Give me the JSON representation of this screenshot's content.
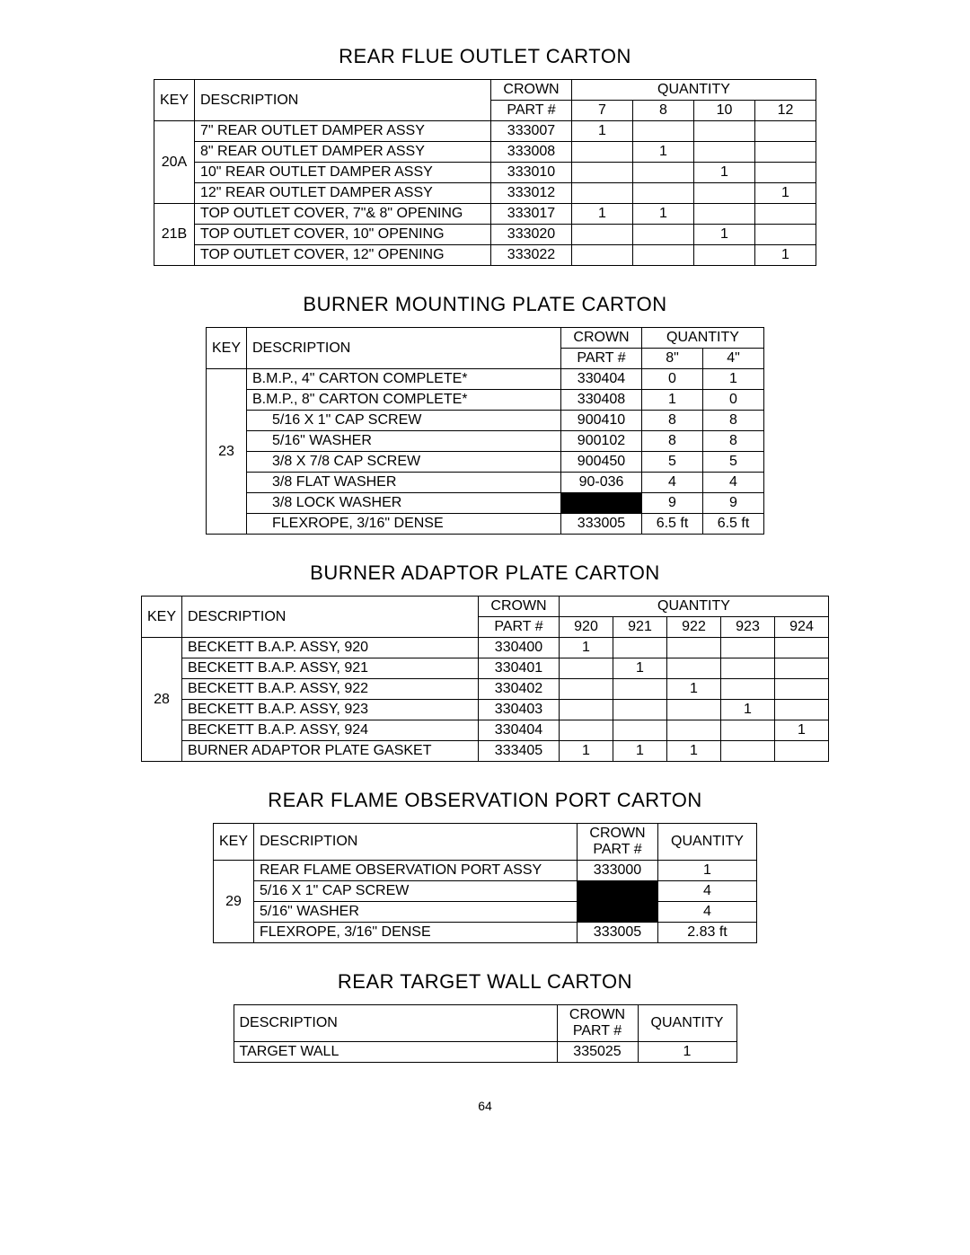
{
  "page_number": "64",
  "sections": [
    {
      "title": "REAR FLUE OUTLET CARTON",
      "has_key": true,
      "desc_width": 330,
      "qty_header": "QUANTITY",
      "qty_cols": [
        "7",
        "8",
        "10",
        "12"
      ],
      "qty_col_width": 68,
      "groups": [
        {
          "key": "20A",
          "rows": [
            {
              "desc": "7\" REAR OUTLET DAMPER ASSY",
              "part": "333007",
              "q": [
                "1",
                "",
                "",
                ""
              ]
            },
            {
              "desc": "8\" REAR OUTLET DAMPER ASSY",
              "part": "333008",
              "q": [
                "",
                "1",
                "",
                ""
              ]
            },
            {
              "desc": "10\" REAR OUTLET DAMPER ASSY",
              "part": "333010",
              "q": [
                "",
                "",
                "1",
                ""
              ]
            },
            {
              "desc": "12\" REAR OUTLET DAMPER ASSY",
              "part": "333012",
              "q": [
                "",
                "",
                "",
                "1"
              ]
            }
          ]
        },
        {
          "key": "21B",
          "rows": [
            {
              "desc": "TOP OUTLET COVER,  7\"& 8\" OPENING",
              "part": "333017",
              "q": [
                "1",
                "1",
                "",
                ""
              ]
            },
            {
              "desc": "TOP OUTLET COVER,  10\" OPENING",
              "part": "333020",
              "q": [
                "",
                "",
                "1",
                ""
              ]
            },
            {
              "desc": "TOP OUTLET COVER,  12\" OPENING",
              "part": "333022",
              "q": [
                "",
                "",
                "",
                "1"
              ]
            }
          ]
        }
      ]
    },
    {
      "title": "BURNER MOUNTING PLATE CARTON",
      "has_key": true,
      "desc_width": 350,
      "qty_header": "QUANTITY",
      "qty_cols": [
        "8\"",
        "4\""
      ],
      "qty_col_width": 68,
      "groups": [
        {
          "key": "23",
          "rows": [
            {
              "desc": "B.M.P., 4\" CARTON COMPLETE*",
              "part": "330404",
              "q": [
                "0",
                "1"
              ]
            },
            {
              "desc": "B.M.P., 8\" CARTON COMPLETE*",
              "part": "330408",
              "q": [
                "1",
                "0"
              ]
            },
            {
              "desc": "5/16 X 1\" CAP SCREW",
              "indent": true,
              "part": "900410",
              "q": [
                "8",
                "8"
              ]
            },
            {
              "desc": "5/16\" WASHER",
              "indent": true,
              "part": "900102",
              "q": [
                "8",
                "8"
              ]
            },
            {
              "desc": "3/8 X 7/8 CAP SCREW",
              "indent": true,
              "part": "900450",
              "q": [
                "5",
                "5"
              ]
            },
            {
              "desc": "3/8 FLAT WASHER",
              "indent": true,
              "part": "90-036",
              "q": [
                "4",
                "4"
              ]
            },
            {
              "desc": "3/8 LOCK WASHER",
              "indent": true,
              "part": "",
              "part_black": true,
              "q": [
                "9",
                "9"
              ]
            },
            {
              "desc": "FLEXROPE, 3/16\" DENSE",
              "indent": true,
              "part": "333005",
              "q": [
                "6.5 ft",
                "6.5 ft"
              ]
            }
          ]
        }
      ]
    },
    {
      "title": "BURNER ADAPTOR PLATE CARTON",
      "has_key": true,
      "desc_width": 330,
      "qty_header": "QUANTITY",
      "qty_cols": [
        "920",
        "921",
        "922",
        "923",
        "924"
      ],
      "qty_col_width": 60,
      "groups": [
        {
          "key": "28",
          "rows": [
            {
              "desc": "BECKETT B.A.P. ASSY, 920",
              "part": "330400",
              "q": [
                "1",
                "",
                "",
                "",
                ""
              ]
            },
            {
              "desc": "BECKETT B.A.P. ASSY, 921",
              "part": "330401",
              "q": [
                "",
                "1",
                "",
                "",
                ""
              ]
            },
            {
              "desc": "BECKETT B.A.P. ASSY, 922",
              "part": "330402",
              "q": [
                "",
                "",
                "1",
                "",
                ""
              ]
            },
            {
              "desc": "BECKETT B.A.P. ASSY, 923",
              "part": "330403",
              "q": [
                "",
                "",
                "",
                "1",
                ""
              ]
            },
            {
              "desc": "BECKETT B.A.P. ASSY, 924",
              "part": "330404",
              "q": [
                "",
                "",
                "",
                "",
                "1"
              ]
            },
            {
              "desc": "BURNER ADAPTOR PLATE GASKET",
              "part": "333405",
              "q": [
                "1",
                "1",
                "1",
                "",
                ""
              ]
            }
          ]
        }
      ]
    },
    {
      "title": "REAR FLAME OBSERVATION PORT CARTON",
      "has_key": true,
      "desc_width": 360,
      "qty_header": "QUANTITY",
      "qty_cols": [],
      "qty_single_width": 110,
      "groups": [
        {
          "key": "29",
          "rows": [
            {
              "desc": "REAR FLAME OBSERVATION PORT ASSY",
              "part": "333000",
              "q": [
                "1"
              ]
            },
            {
              "desc": "5/16 X 1\" CAP SCREW",
              "part": "",
              "part_black": true,
              "q": [
                "4"
              ]
            },
            {
              "desc": "5/16\" WASHER",
              "part": "",
              "part_black": true,
              "q": [
                "4"
              ]
            },
            {
              "desc": "FLEXROPE, 3/16\" DENSE",
              "part": "333005",
              "q": [
                "2.83 ft"
              ]
            }
          ]
        }
      ]
    },
    {
      "title": "REAR TARGET WALL CARTON",
      "has_key": false,
      "desc_width": 360,
      "qty_header": "QUANTITY",
      "qty_cols": [],
      "qty_single_width": 110,
      "groups": [
        {
          "key": "",
          "rows": [
            {
              "desc": "TARGET WALL",
              "part": "335025",
              "q": [
                "1"
              ]
            }
          ]
        }
      ]
    }
  ],
  "labels": {
    "key": "KEY",
    "description": "DESCRIPTION",
    "crown_part": "CROWN PART #"
  }
}
